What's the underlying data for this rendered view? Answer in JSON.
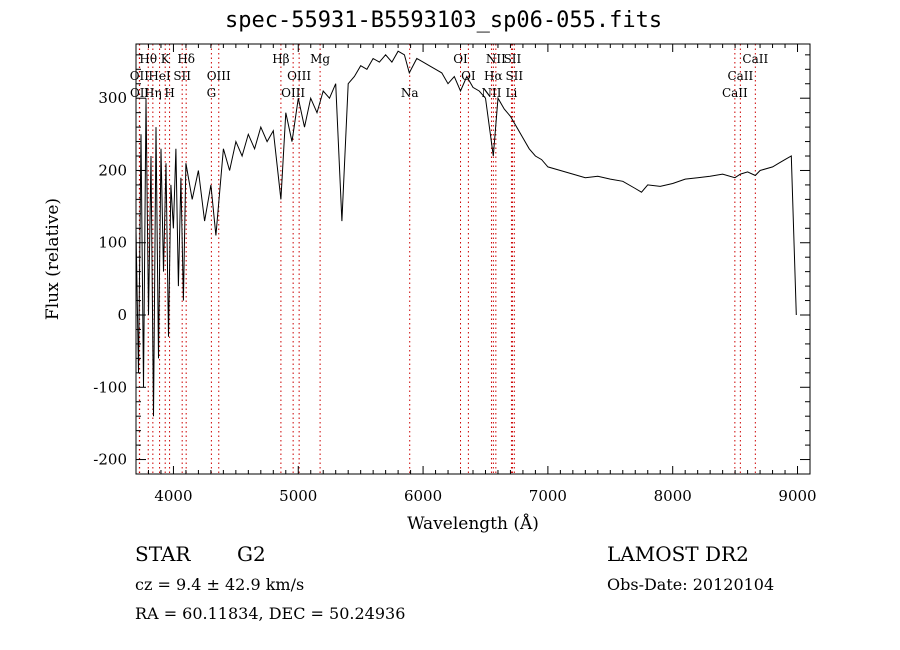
{
  "header": {
    "title": "spec-55931-B5593103_sp06-055.fits"
  },
  "footer": {
    "object_class": "STAR",
    "subclass": "G2",
    "redshift_line": "cz = 9.4 ± 42.9 km/s",
    "coords_line": "RA =  60.11834, DEC =  50.24936",
    "survey": "LAMOST DR2",
    "obs_date": "Obs-Date: 20120104"
  },
  "chart_data": {
    "type": "line",
    "title": "spec-55931-B5593103_sp06-055.fits",
    "xlabel": "Wavelength (Å)",
    "ylabel": "Flux (relative)",
    "xlim": [
      3700,
      9100
    ],
    "ylim": [
      -220,
      375
    ],
    "xticks": [
      4000,
      5000,
      6000,
      7000,
      8000,
      9000
    ],
    "yticks": [
      -200,
      -100,
      0,
      100,
      200,
      300
    ],
    "grid": false,
    "line_color": "#000000",
    "marker_color": "#cc0000",
    "series": [
      {
        "x": [
          3700,
          3720,
          3740,
          3760,
          3780,
          3800,
          3820,
          3840,
          3860,
          3880,
          3900,
          3920,
          3940,
          3960,
          3980,
          4000,
          4020,
          4040,
          4060,
          4080,
          4100,
          4150,
          4200,
          4250,
          4300,
          4340,
          4400,
          4450,
          4500,
          4550,
          4600,
          4650,
          4700,
          4750,
          4800,
          4861,
          4900,
          4950,
          5000,
          5050,
          5100,
          5150,
          5200,
          5250,
          5300,
          5350,
          5400,
          5450,
          5500,
          5550,
          5600,
          5650,
          5700,
          5750,
          5800,
          5850,
          5890,
          5950,
          6000,
          6050,
          6100,
          6150,
          6200,
          6250,
          6300,
          6350,
          6400,
          6450,
          6500,
          6563,
          6600,
          6650,
          6700,
          6750,
          6800,
          6850,
          6900,
          6950,
          7000,
          7100,
          7200,
          7300,
          7400,
          7500,
          7600,
          7700,
          7750,
          7800,
          7900,
          8000,
          8100,
          8200,
          8300,
          8400,
          8498,
          8542,
          8600,
          8662,
          8700,
          8800,
          8850,
          8900,
          8950,
          8990
        ],
        "y": [
          120,
          -80,
          250,
          -100,
          300,
          0,
          220,
          -140,
          260,
          -60,
          230,
          60,
          210,
          -30,
          180,
          120,
          230,
          40,
          190,
          20,
          210,
          160,
          200,
          130,
          180,
          110,
          230,
          200,
          240,
          220,
          250,
          230,
          260,
          240,
          255,
          160,
          280,
          240,
          300,
          260,
          300,
          280,
          310,
          300,
          320,
          130,
          320,
          330,
          345,
          340,
          355,
          350,
          360,
          350,
          365,
          360,
          335,
          355,
          350,
          345,
          340,
          335,
          320,
          330,
          310,
          330,
          315,
          310,
          300,
          220,
          300,
          285,
          275,
          260,
          245,
          230,
          220,
          215,
          205,
          200,
          195,
          190,
          192,
          188,
          185,
          175,
          170,
          180,
          178,
          182,
          188,
          190,
          192,
          195,
          190,
          195,
          198,
          193,
          200,
          205,
          210,
          215,
          220,
          0
        ]
      }
    ],
    "line_markers": [
      {
        "label": "Hθ",
        "x": 3798,
        "row": 1
      },
      {
        "label": "K",
        "x": 3934,
        "row": 1
      },
      {
        "label": "Hδ",
        "x": 4102,
        "row": 1
      },
      {
        "label": "OII",
        "x": 3727,
        "row": 2
      },
      {
        "label": "HeI",
        "x": 3889,
        "row": 2
      },
      {
        "label": "SII",
        "x": 4070,
        "row": 2
      },
      {
        "label": "OIII",
        "x": 4363,
        "row": 2
      },
      {
        "label": "OII",
        "x": 3729,
        "row": 3
      },
      {
        "label": "Hη",
        "x": 3835,
        "row": 3
      },
      {
        "label": "H",
        "x": 3969,
        "row": 3
      },
      {
        "label": "G",
        "x": 4304,
        "row": 3
      },
      {
        "label": "Hβ",
        "x": 4861,
        "row": 1
      },
      {
        "label": "Mg",
        "x": 5175,
        "row": 1
      },
      {
        "label": "OIII",
        "x": 5007,
        "row": 2
      },
      {
        "label": "OIII",
        "x": 4959,
        "row": 3
      },
      {
        "label": "Na",
        "x": 5893,
        "row": 3
      },
      {
        "label": "OI",
        "x": 6300,
        "row": 1
      },
      {
        "label": "OI",
        "x": 6363,
        "row": 2
      },
      {
        "label": "NII",
        "x": 6583,
        "row": 1
      },
      {
        "label": "SII",
        "x": 6716,
        "row": 1
      },
      {
        "label": "Hα",
        "x": 6563,
        "row": 2
      },
      {
        "label": "SII",
        "x": 6731,
        "row": 2
      },
      {
        "label": "NII",
        "x": 6548,
        "row": 3
      },
      {
        "label": "Li",
        "x": 6708,
        "row": 3
      },
      {
        "label": "CaII",
        "x": 8662,
        "row": 1
      },
      {
        "label": "CaII",
        "x": 8542,
        "row": 2
      },
      {
        "label": "CaII",
        "x": 8498,
        "row": 3
      }
    ]
  }
}
